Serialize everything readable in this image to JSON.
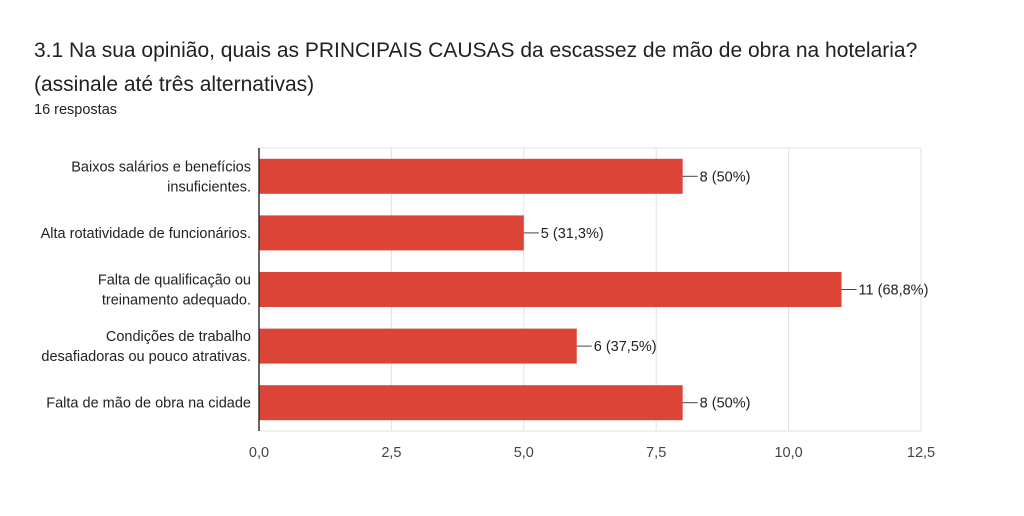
{
  "question": {
    "title": "3.1 Na sua opinião, quais as PRINCIPAIS CAUSAS da escassez de mão de obra na hotelaria? (assinale até três alternativas)",
    "responses": "16 respostas"
  },
  "chart_data": {
    "type": "bar",
    "orientation": "horizontal",
    "categories": [
      [
        "Baixos salários e benefícios",
        "insuficientes."
      ],
      [
        "Alta rotatividade de funcionários."
      ],
      [
        "Falta de qualificação ou",
        "treinamento adequado."
      ],
      [
        "Condições de trabalho",
        "desafiadoras ou pouco atrativas."
      ],
      [
        "Falta de mão de obra na cidade"
      ]
    ],
    "values": [
      8,
      5,
      11,
      6,
      8
    ],
    "data_labels": [
      "8 (50%)",
      "5 (31,3%)",
      "11 (68,8%)",
      "6 (37,5%)",
      "8 (50%)"
    ],
    "xlim": [
      0,
      12.5
    ],
    "xticks": [
      "0,0",
      "2,5",
      "5,0",
      "7,5",
      "10,0",
      "12,5"
    ],
    "bar_color": "#db4437",
    "grid": true
  }
}
